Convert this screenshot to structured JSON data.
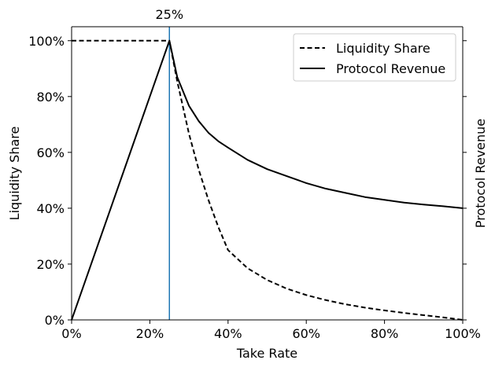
{
  "chart_data": {
    "type": "line",
    "title": "",
    "xlabel": "Take Rate",
    "ylabel": "Liquidity Share",
    "ylabel_right": "Protocol Revenue",
    "xlim": [
      0,
      1
    ],
    "ylim": [
      0,
      1.05
    ],
    "x_ticks": [
      0,
      0.2,
      0.4,
      0.6,
      0.8,
      1.0
    ],
    "x_tick_labels": [
      "0%",
      "20%",
      "40%",
      "60%",
      "80%",
      "100%"
    ],
    "y_ticks": [
      0,
      0.2,
      0.4,
      0.6,
      0.8,
      1.0
    ],
    "y_tick_labels": [
      "0%",
      "20%",
      "40%",
      "60%",
      "80%",
      "100%"
    ],
    "grid": false,
    "legend_position": "top-right",
    "vline": {
      "x": 0.25,
      "label": "25%",
      "color": "#1f77b4"
    },
    "x": [
      0,
      0.05,
      0.1,
      0.15,
      0.2,
      0.25,
      0.27,
      0.3,
      0.325,
      0.35,
      0.375,
      0.4,
      0.45,
      0.5,
      0.55,
      0.6,
      0.65,
      0.7,
      0.75,
      0.8,
      0.85,
      0.9,
      0.95,
      1.0
    ],
    "series": [
      {
        "name": "Liquidity Share",
        "style": "dashed",
        "color": "#000000",
        "values": [
          1.0,
          1.0,
          1.0,
          1.0,
          1.0,
          1.0,
          0.855,
          0.667,
          0.538,
          0.429,
          0.333,
          0.25,
          0.185,
          0.143,
          0.112,
          0.089,
          0.071,
          0.056,
          0.044,
          0.034,
          0.025,
          0.017,
          0.009,
          0.0
        ]
      },
      {
        "name": "Protocol Revenue",
        "style": "solid",
        "color": "#000000",
        "values": [
          0.0,
          0.2,
          0.4,
          0.6,
          0.8,
          1.0,
          0.87,
          0.767,
          0.712,
          0.67,
          0.64,
          0.617,
          0.573,
          0.54,
          0.515,
          0.49,
          0.47,
          0.455,
          0.44,
          0.43,
          0.42,
          0.413,
          0.407,
          0.4
        ]
      }
    ]
  }
}
